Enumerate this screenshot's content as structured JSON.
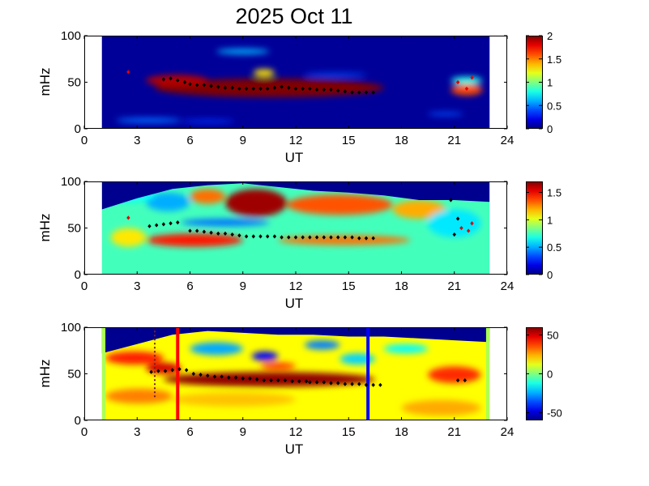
{
  "figure": {
    "title": "2025 Oct 11"
  },
  "chart_data": [
    {
      "type": "heatmap",
      "panel": "top",
      "xlabel": "UT",
      "ylabel": "mHz",
      "xlim": [
        0,
        24
      ],
      "ylim": [
        0,
        100
      ],
      "xticks": [
        "0",
        "3",
        "6",
        "9",
        "12",
        "15",
        "18",
        "21",
        "24"
      ],
      "yticks": [
        "0",
        "50",
        "100"
      ],
      "data_extent_x": [
        1,
        23
      ],
      "colormap": "jet",
      "colorbar": {
        "range": [
          0,
          2
        ],
        "ticks": [
          "0",
          "0.5",
          "1",
          "1.5",
          "2"
        ],
        "tick_values": [
          0,
          0.5,
          1,
          1.5,
          2
        ]
      },
      "background_value": 0.05,
      "blobs": [
        {
          "x": [
            4.0,
            17.0
          ],
          "y": [
            34,
            54
          ],
          "value": 2.0
        },
        {
          "x": [
            3.5,
            7.0
          ],
          "y": [
            46,
            58
          ],
          "value": 1.9
        },
        {
          "x": [
            9.6,
            10.8
          ],
          "y": [
            56,
            64
          ],
          "value": 1.3
        },
        {
          "x": [
            7.5,
            10.5
          ],
          "y": [
            80,
            86
          ],
          "value": 0.6
        },
        {
          "x": [
            1.8,
            5.5
          ],
          "y": [
            6,
            12
          ],
          "value": 0.45
        },
        {
          "x": [
            5.5,
            8.5
          ],
          "y": [
            6,
            10
          ],
          "value": 0.35
        },
        {
          "x": [
            20.8,
            22.6
          ],
          "y": [
            36,
            48
          ],
          "value": 1.6
        },
        {
          "x": [
            20.8,
            22.6
          ],
          "y": [
            48,
            56
          ],
          "value": 0.8
        },
        {
          "x": [
            19.5,
            21.5
          ],
          "y": [
            14,
            18
          ],
          "value": 0.4
        },
        {
          "x": [
            12.5,
            16.0
          ],
          "y": [
            56,
            60
          ],
          "value": 0.4
        }
      ],
      "black_points": {
        "x": [
          4.5,
          4.9,
          5.3,
          5.7,
          6.0,
          6.4,
          6.8,
          7.2,
          7.6,
          8.0,
          8.4,
          8.8,
          9.2,
          9.6,
          10.0,
          10.4,
          10.8,
          11.2,
          11.6,
          12.0,
          12.4,
          12.8,
          13.2,
          13.6,
          14.0,
          14.4,
          14.8,
          15.2,
          15.6,
          16.0,
          16.4
        ],
        "y": [
          53,
          54,
          52,
          50,
          48,
          47,
          47,
          46,
          45,
          44,
          44,
          43,
          43,
          43,
          43,
          43,
          44,
          45,
          44,
          43,
          43,
          43,
          42,
          42,
          42,
          41,
          40,
          39,
          39,
          39,
          39
        ]
      },
      "red_points": {
        "x": [
          2.5,
          21.2,
          21.7,
          22.0
        ],
        "y": [
          61,
          50,
          43,
          55
        ]
      }
    },
    {
      "type": "heatmap",
      "panel": "middle",
      "xlabel": "UT",
      "ylabel": "mHz",
      "xlim": [
        0,
        24
      ],
      "ylim": [
        0,
        100
      ],
      "xticks": [
        "0",
        "3",
        "6",
        "9",
        "12",
        "15",
        "18",
        "21",
        "24"
      ],
      "yticks": [
        "0",
        "50",
        "100"
      ],
      "data_extent_x": [
        1,
        23
      ],
      "colormap": "jet",
      "colorbar": {
        "range": [
          0,
          1.7
        ],
        "ticks": [
          "0",
          "0.5",
          "1",
          "1.5"
        ],
        "tick_values": [
          0,
          0.5,
          1,
          1.5
        ]
      },
      "background_value": 0.75,
      "blobs": [
        {
          "x": [
            8.0,
            11.5
          ],
          "y": [
            62,
            92
          ],
          "value": 1.65
        },
        {
          "x": [
            6.0,
            8.0
          ],
          "y": [
            76,
            92
          ],
          "value": 1.3
        },
        {
          "x": [
            11.5,
            17.5
          ],
          "y": [
            64,
            86
          ],
          "value": 1.35
        },
        {
          "x": [
            3.5,
            6.0
          ],
          "y": [
            68,
            88
          ],
          "value": 0.5
        },
        {
          "x": [
            5.5,
            10.5
          ],
          "y": [
            52,
            60
          ],
          "value": 0.4
        },
        {
          "x": [
            3.5,
            9.0
          ],
          "y": [
            30,
            44
          ],
          "value": 1.45
        },
        {
          "x": [
            11.0,
            18.5
          ],
          "y": [
            32,
            42
          ],
          "value": 1.3
        },
        {
          "x": [
            1.5,
            3.5
          ],
          "y": [
            30,
            50
          ],
          "value": 1.1
        },
        {
          "x": [
            17.5,
            20.5
          ],
          "y": [
            60,
            80
          ],
          "value": 1.2
        },
        {
          "x": [
            19.5,
            22.5
          ],
          "y": [
            40,
            70
          ],
          "value": 0.6
        },
        {
          "x": [
            1.2,
            4.0
          ],
          "y": [
            78,
            92
          ],
          "value": 0.65
        }
      ],
      "top_mask_profile": {
        "x": [
          1,
          3,
          5,
          7,
          9,
          11,
          13,
          15,
          17,
          19,
          21,
          23
        ],
        "y": [
          70,
          82,
          92,
          96,
          98,
          94,
          90,
          88,
          85,
          80,
          80,
          78
        ]
      },
      "black_points": {
        "x": [
          3.7,
          4.1,
          4.5,
          4.9,
          5.3,
          6.0,
          6.4,
          6.8,
          7.2,
          7.6,
          8.0,
          8.4,
          8.8,
          9.2,
          9.6,
          10.0,
          10.4,
          10.8,
          11.2,
          11.6,
          12.0,
          12.4,
          12.8,
          13.2,
          13.6,
          14.0,
          14.4,
          14.8,
          15.2,
          15.6,
          16.0,
          16.4,
          20.8,
          21.0,
          21.2
        ],
        "y": [
          52,
          53,
          54,
          55,
          56,
          47,
          47,
          46,
          45,
          44,
          44,
          43,
          42,
          41,
          41,
          41,
          41,
          41,
          40,
          40,
          40,
          40,
          40,
          40,
          40,
          40,
          40,
          40,
          40,
          39,
          39,
          39,
          80,
          43,
          60
        ]
      },
      "red_points": {
        "x": [
          2.5,
          21.4,
          21.8,
          22.0
        ],
        "y": [
          61,
          50,
          47,
          55
        ]
      }
    },
    {
      "type": "heatmap",
      "panel": "bottom",
      "xlabel": "UT",
      "ylabel": "mHz",
      "xlim": [
        0,
        24
      ],
      "ylim": [
        0,
        100
      ],
      "xticks": [
        "0",
        "3",
        "6",
        "9",
        "12",
        "15",
        "18",
        "21",
        "24"
      ],
      "yticks": [
        "0",
        "50",
        "100"
      ],
      "data_extent_x": [
        1,
        23
      ],
      "colormap": "jet",
      "colorbar": {
        "range": [
          -60,
          60
        ],
        "ticks": [
          "-50",
          "0",
          "50"
        ],
        "tick_values": [
          -50,
          0,
          50
        ]
      },
      "background_value": 15,
      "blobs": [
        {
          "x": [
            4.5,
            16.5
          ],
          "y": [
            36,
            52
          ],
          "value": 58
        },
        {
          "x": [
            3.5,
            5.5
          ],
          "y": [
            50,
            62
          ],
          "value": 50
        },
        {
          "x": [
            1.2,
            4.5
          ],
          "y": [
            60,
            74
          ],
          "value": 42
        },
        {
          "x": [
            6.0,
            9.0
          ],
          "y": [
            70,
            84
          ],
          "value": -25
        },
        {
          "x": [
            9.5,
            11.0
          ],
          "y": [
            64,
            74
          ],
          "value": -45
        },
        {
          "x": [
            12.5,
            14.5
          ],
          "y": [
            76,
            86
          ],
          "value": -30
        },
        {
          "x": [
            14.5,
            16.5
          ],
          "y": [
            60,
            72
          ],
          "value": -20
        },
        {
          "x": [
            17.0,
            19.5
          ],
          "y": [
            72,
            82
          ],
          "value": -15
        },
        {
          "x": [
            10.0,
            12.0
          ],
          "y": [
            55,
            62
          ],
          "value": 40
        },
        {
          "x": [
            19.5,
            22.5
          ],
          "y": [
            40,
            58
          ],
          "value": 40
        },
        {
          "x": [
            1.2,
            5.0
          ],
          "y": [
            18,
            34
          ],
          "value": 30
        },
        {
          "x": [
            5.0,
            12.0
          ],
          "y": [
            15,
            30
          ],
          "value": 22
        },
        {
          "x": [
            18.0,
            22.5
          ],
          "y": [
            5,
            22
          ],
          "value": 25
        }
      ],
      "top_mask_profile": {
        "x": [
          1,
          3,
          5,
          7,
          9,
          11,
          13,
          15,
          17,
          19,
          21,
          23
        ],
        "y": [
          72,
          82,
          92,
          96,
          94,
          92,
          92,
          90,
          90,
          88,
          86,
          84
        ]
      },
      "edge_strips": {
        "x": [
          [
            1.0,
            1.2
          ],
          [
            22.8,
            23.0
          ]
        ],
        "value": 5
      },
      "black_points": {
        "x": [
          3.8,
          4.2,
          4.6,
          5.0,
          5.4,
          5.8,
          6.2,
          6.6,
          7.0,
          7.4,
          7.8,
          8.2,
          8.6,
          9.0,
          9.4,
          9.8,
          10.2,
          10.6,
          11.0,
          11.4,
          11.8,
          12.2,
          12.6,
          12.8,
          13.2,
          13.6,
          14.0,
          14.4,
          14.8,
          15.2,
          15.6,
          16.0,
          16.4,
          16.8,
          21.2,
          21.6
        ],
        "y": [
          52,
          53,
          53,
          54,
          55,
          54,
          50,
          49,
          48,
          47,
          47,
          46,
          46,
          45,
          45,
          44,
          43,
          43,
          43,
          43,
          42,
          42,
          42,
          41,
          41,
          41,
          40,
          40,
          39,
          39,
          39,
          38,
          38,
          38,
          43,
          43
        ]
      },
      "markers": [
        {
          "x": 5.3,
          "color": "#ff0000"
        },
        {
          "x": 16.1,
          "color": "#0000ff"
        }
      ],
      "dashed_marker": {
        "x": 4.0,
        "y": [
          25,
          100
        ],
        "color": "#7a1e1e"
      }
    }
  ]
}
